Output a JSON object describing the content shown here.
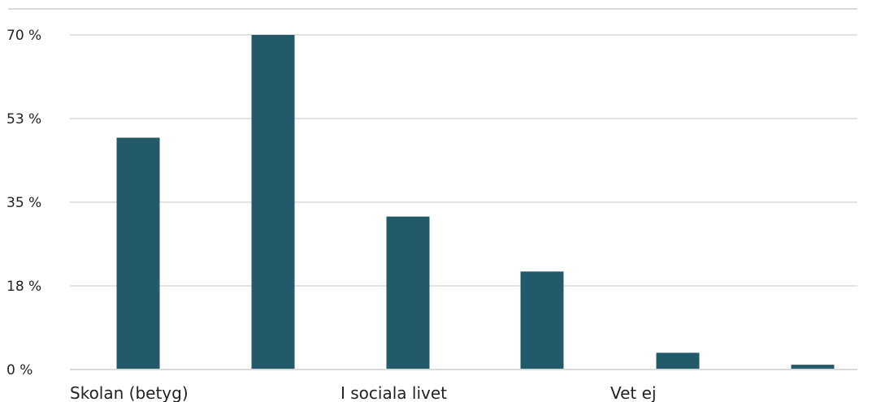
{
  "chart_data": {
    "type": "bar",
    "x": [
      "Skolan (betyg)",
      "",
      "I sociala livet",
      "",
      "Vet ej",
      ""
    ],
    "values": [
      48.5,
      70,
      32,
      20.5,
      3.5,
      1
    ],
    "category_labels": [
      "Skolan (betyg)",
      "I sociala livet",
      "Vet ej"
    ],
    "yticks": [
      "0 %",
      "18 %",
      "35 %",
      "53 %",
      "70 %"
    ],
    "ytick_values": [
      0,
      17.5,
      35,
      52.5,
      70
    ],
    "ylim": [
      0,
      70
    ],
    "grid": true,
    "bar_color": "#235A69",
    "grid_color": "#D9D9D9",
    "title": "",
    "xlabel": "",
    "ylabel": ""
  }
}
